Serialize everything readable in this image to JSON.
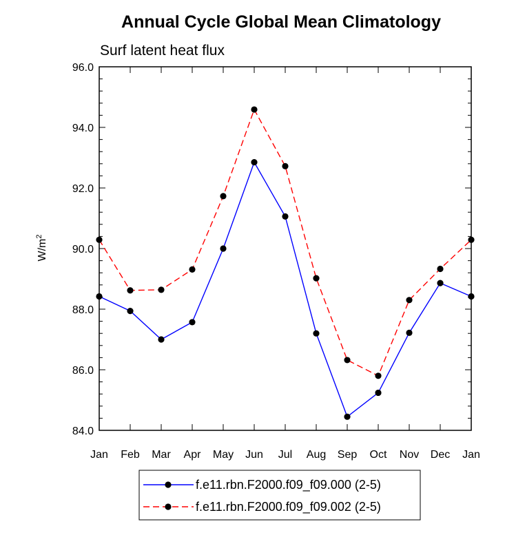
{
  "chart_data": {
    "type": "line",
    "title": "Annual Cycle Global Mean Climatology",
    "subtitle": "Surf latent heat flux",
    "ylabel_base": "W/m",
    "ylabel_sup": "2",
    "xlabel": "",
    "categories": [
      "Jan",
      "Feb",
      "Mar",
      "Apr",
      "May",
      "Jun",
      "Jul",
      "Aug",
      "Sep",
      "Oct",
      "Nov",
      "Dec",
      "Jan"
    ],
    "ylim": [
      84.0,
      96.0
    ],
    "yticks": [
      84.0,
      86.0,
      88.0,
      90.0,
      92.0,
      94.0,
      96.0
    ],
    "ytick_labels": [
      "84.0",
      "86.0",
      "88.0",
      "90.0",
      "92.0",
      "94.0",
      "96.0"
    ],
    "grid": false,
    "legend_position": "bottom",
    "series": [
      {
        "name": "f.e11.rbn.F2000.f09_f09.000 (2-5)",
        "color": "#0000ff",
        "dash": "solid",
        "values": [
          88.42,
          87.94,
          87.0,
          87.57,
          90.0,
          92.85,
          91.06,
          87.2,
          84.45,
          85.24,
          87.22,
          88.86,
          88.42
        ]
      },
      {
        "name": "f.e11.rbn.F2000.f09_f09.002 (2-5)",
        "color": "#ff0000",
        "dash": "dashed",
        "values": [
          90.29,
          88.62,
          88.64,
          89.31,
          91.73,
          94.59,
          92.72,
          89.02,
          86.32,
          85.8,
          88.3,
          89.33,
          90.29
        ]
      }
    ]
  }
}
